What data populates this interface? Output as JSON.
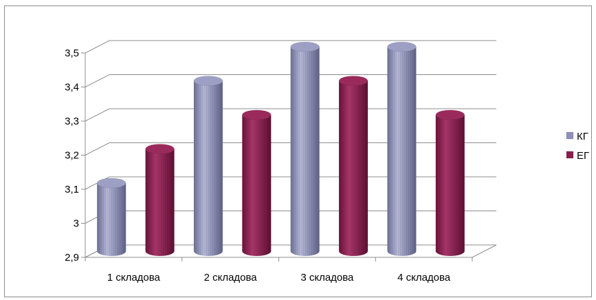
{
  "chart_data": {
    "type": "bar",
    "categories": [
      "1 складова",
      "2 складова",
      "3 складова",
      "4 складова"
    ],
    "series": [
      {
        "name": "КГ",
        "values": [
          3.1,
          3.4,
          3.5,
          3.5
        ],
        "color": "#8f92b8"
      },
      {
        "name": "ЕГ",
        "values": [
          3.2,
          3.3,
          3.4,
          3.3
        ],
        "color": "#8a1f4e"
      }
    ],
    "yticks": [
      "2,9",
      "3",
      "3,1",
      "3,2",
      "3,3",
      "3,4",
      "3,5"
    ],
    "ylim": [
      2.9,
      3.5
    ],
    "grid": true,
    "legend_position": "right",
    "style": "3d-cylinder"
  }
}
